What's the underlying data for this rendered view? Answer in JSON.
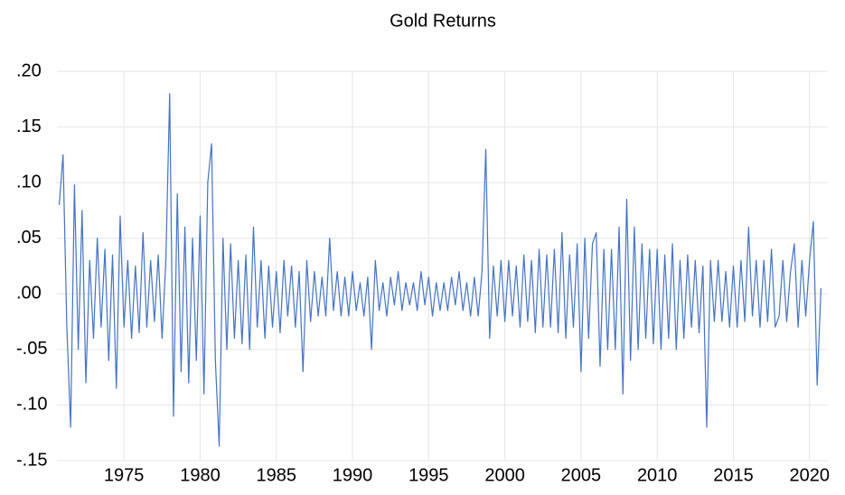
{
  "chart_data": {
    "type": "line",
    "title": "Gold Returns",
    "color": "#4472c4",
    "x": [
      1970.75,
      1971,
      1971.25,
      1971.5,
      1971.75,
      1972,
      1972.25,
      1972.5,
      1972.75,
      1973,
      1973.25,
      1973.5,
      1973.75,
      1974,
      1974.25,
      1974.5,
      1974.75,
      1975,
      1975.25,
      1975.5,
      1975.75,
      1976,
      1976.25,
      1976.5,
      1976.75,
      1977,
      1977.25,
      1977.5,
      1977.75,
      1978,
      1978.25,
      1978.5,
      1978.75,
      1979,
      1979.25,
      1979.5,
      1979.75,
      1980,
      1980.25,
      1980.5,
      1980.75,
      1981,
      1981.25,
      1981.5,
      1981.75,
      1982,
      1982.25,
      1982.5,
      1982.75,
      1983,
      1983.25,
      1983.5,
      1983.75,
      1984,
      1984.25,
      1984.5,
      1984.75,
      1985,
      1985.25,
      1985.5,
      1985.75,
      1986,
      1986.25,
      1986.5,
      1986.75,
      1987,
      1987.25,
      1987.5,
      1987.75,
      1988,
      1988.25,
      1988.5,
      1988.75,
      1989,
      1989.25,
      1989.5,
      1989.75,
      1990,
      1990.25,
      1990.5,
      1990.75,
      1991,
      1991.25,
      1991.5,
      1991.75,
      1992,
      1992.25,
      1992.5,
      1992.75,
      1993,
      1993.25,
      1993.5,
      1993.75,
      1994,
      1994.25,
      1994.5,
      1994.75,
      1995,
      1995.25,
      1995.5,
      1995.75,
      1996,
      1996.25,
      1996.5,
      1996.75,
      1997,
      1997.25,
      1997.5,
      1997.75,
      1998,
      1998.25,
      1998.5,
      1998.75,
      1999,
      1999.25,
      1999.5,
      1999.75,
      2000,
      2000.25,
      2000.5,
      2000.75,
      2001,
      2001.25,
      2001.5,
      2001.75,
      2002,
      2002.25,
      2002.5,
      2002.75,
      2003,
      2003.25,
      2003.5,
      2003.75,
      2004,
      2004.25,
      2004.5,
      2004.75,
      2005,
      2005.25,
      2005.5,
      2005.75,
      2006,
      2006.25,
      2006.5,
      2006.75,
      2007,
      2007.25,
      2007.5,
      2007.75,
      2008,
      2008.25,
      2008.5,
      2008.75,
      2009,
      2009.25,
      2009.5,
      2009.75,
      2010,
      2010.25,
      2010.5,
      2010.75,
      2011,
      2011.25,
      2011.5,
      2011.75,
      2012,
      2012.25,
      2012.5,
      2012.75,
      2013,
      2013.25,
      2013.5,
      2013.75,
      2014,
      2014.25,
      2014.5,
      2014.75,
      2015,
      2015.25,
      2015.5,
      2015.75,
      2016,
      2016.25,
      2016.5,
      2016.75,
      2017,
      2017.25,
      2017.5,
      2017.75,
      2018,
      2018.25,
      2018.5,
      2018.75,
      2019,
      2019.25,
      2019.5,
      2019.75,
      2020,
      2020.25,
      2020.5,
      2020.75
    ],
    "values": [
      0.08,
      0.125,
      -0.03,
      -0.12,
      0.098,
      -0.05,
      0.075,
      -0.08,
      0.03,
      -0.04,
      0.05,
      -0.03,
      0.04,
      -0.06,
      0.035,
      -0.085,
      0.07,
      -0.03,
      0.03,
      -0.04,
      0.025,
      -0.035,
      0.055,
      -0.03,
      0.03,
      -0.025,
      0.035,
      -0.04,
      0.03,
      0.18,
      -0.11,
      0.09,
      -0.07,
      0.06,
      -0.08,
      0.05,
      -0.06,
      0.07,
      -0.09,
      0.1,
      0.135,
      -0.06,
      -0.137,
      0.05,
      -0.05,
      0.045,
      -0.04,
      0.03,
      -0.045,
      0.035,
      -0.05,
      0.06,
      -0.03,
      0.03,
      -0.04,
      0.025,
      -0.03,
      0.02,
      -0.035,
      0.03,
      -0.02,
      0.025,
      -0.03,
      0.02,
      -0.07,
      0.03,
      -0.025,
      0.02,
      -0.02,
      0.015,
      -0.02,
      0.05,
      -0.015,
      0.02,
      -0.02,
      0.015,
      -0.02,
      0.02,
      -0.015,
      0.01,
      -0.02,
      0.015,
      -0.05,
      0.03,
      -0.015,
      0.01,
      -0.02,
      0.015,
      -0.01,
      0.02,
      -0.015,
      0.01,
      -0.01,
      0.01,
      -0.015,
      0.02,
      -0.01,
      0.015,
      -0.02,
      0.01,
      -0.015,
      0.01,
      -0.015,
      0.015,
      -0.01,
      0.02,
      -0.015,
      0.01,
      -0.02,
      0.015,
      -0.02,
      0.02,
      0.13,
      -0.04,
      0.025,
      -0.02,
      0.03,
      -0.025,
      0.03,
      -0.02,
      0.025,
      -0.03,
      0.035,
      -0.025,
      0.03,
      -0.035,
      0.04,
      -0.03,
      0.035,
      -0.03,
      0.04,
      -0.035,
      0.055,
      -0.04,
      0.035,
      -0.03,
      0.045,
      -0.07,
      0.05,
      -0.04,
      0.045,
      0.055,
      -0.065,
      0.04,
      -0.05,
      0.04,
      -0.05,
      0.06,
      -0.09,
      0.085,
      -0.06,
      0.06,
      -0.05,
      0.045,
      -0.04,
      0.04,
      -0.045,
      0.04,
      -0.05,
      0.035,
      -0.04,
      0.045,
      -0.05,
      0.03,
      -0.04,
      0.035,
      -0.03,
      0.03,
      -0.035,
      0.025,
      -0.12,
      0.03,
      -0.025,
      0.03,
      -0.025,
      0.02,
      -0.03,
      0.025,
      -0.03,
      0.03,
      -0.025,
      0.06,
      -0.02,
      0.03,
      -0.03,
      0.03,
      -0.025,
      0.04,
      -0.03,
      -0.02,
      0.03,
      -0.025,
      0.02,
      0.045,
      -0.03,
      0.03,
      -0.02,
      0.03,
      0.065,
      -0.082,
      0.005
    ],
    "xlim": [
      1970.6,
      2021.2
    ],
    "xticks": [
      1975,
      1980,
      1985,
      1990,
      1995,
      2000,
      2005,
      2010,
      2015,
      2020
    ],
    "ylim": [
      -0.15,
      0.2
    ],
    "yticks": [
      {
        "value": 0.2,
        "label": ".20"
      },
      {
        "value": 0.15,
        "label": ".15"
      },
      {
        "value": 0.1,
        "label": ".10"
      },
      {
        "value": 0.05,
        "label": ".05"
      },
      {
        "value": 0,
        "label": ".00"
      },
      {
        "value": -0.05,
        "label": "-.05"
      },
      {
        "value": -0.1,
        "label": "-.10"
      },
      {
        "value": -0.15,
        "label": "-.15"
      }
    ],
    "grid": true
  }
}
